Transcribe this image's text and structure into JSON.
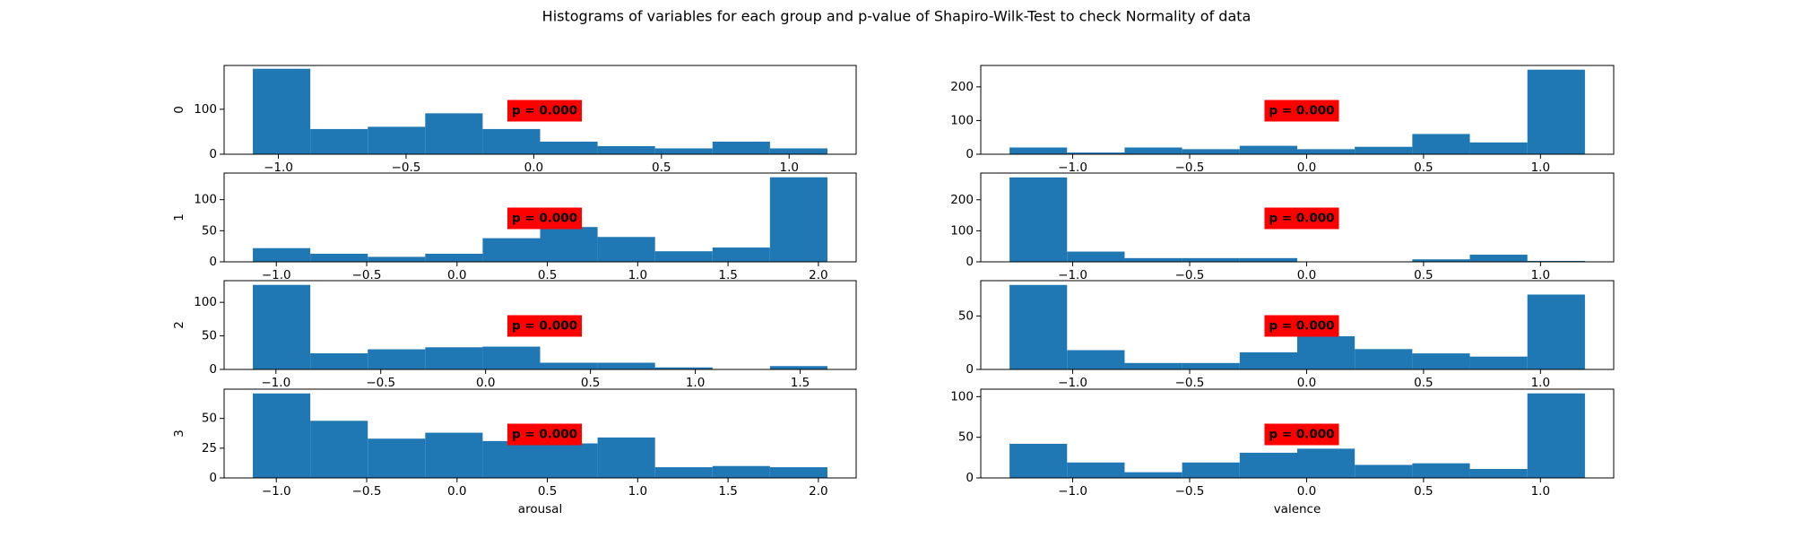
{
  "title": "Histograms of variables for each group and p-value of Shapiro-Wilk-Test to check Normality of data",
  "chart_data": [
    {
      "type": "histogram",
      "ylabel": "0",
      "annotation": "p = 0.000",
      "color": "#1f77b4",
      "bins": [
        -1.1,
        -0.875,
        -0.65,
        -0.425,
        -0.2,
        0.025,
        0.25,
        0.475,
        0.7,
        0.925,
        1.15
      ],
      "values": [
        190,
        56,
        61,
        91,
        56,
        28,
        18,
        13,
        28,
        13
      ],
      "xlim": [
        -1.2125,
        1.2625
      ],
      "ylim": [
        0,
        197.4
      ],
      "xticks": [
        {
          "value": -1.0,
          "label": "−1.0"
        },
        {
          "value": -0.5,
          "label": "−0.5"
        },
        {
          "value": 0.0,
          "label": "0.0"
        },
        {
          "value": 0.5,
          "label": "0.5"
        },
        {
          "value": 1.0,
          "label": "1.0"
        }
      ],
      "yticks": [
        0,
        100
      ]
    },
    {
      "type": "histogram",
      "annotation": "p = 0.000",
      "color": "#1f77b4",
      "bins": [
        -1.27,
        -1.024,
        -0.778,
        -0.532,
        -0.286,
        -0.04,
        0.206,
        0.452,
        0.698,
        0.944,
        1.19
      ],
      "values": [
        20,
        5,
        20,
        15,
        25,
        15,
        22,
        60,
        35,
        251
      ],
      "xlim": [
        -1.393,
        1.313
      ],
      "ylim": [
        0,
        263.5
      ],
      "xticks": [
        {
          "value": -1.0,
          "label": "−1.0"
        },
        {
          "value": -0.5,
          "label": "−0.5"
        },
        {
          "value": 0.0,
          "label": "0.0"
        },
        {
          "value": 0.5,
          "label": "0.5"
        },
        {
          "value": 1.0,
          "label": "1.0"
        }
      ],
      "yticks": [
        0,
        100,
        200
      ]
    },
    {
      "type": "histogram",
      "ylabel": "1",
      "annotation": "p = 0.000",
      "color": "#1f77b4",
      "bins": [
        -1.13,
        -0.812,
        -0.494,
        -0.176,
        0.142,
        0.46,
        0.778,
        1.096,
        1.414,
        1.732,
        2.05
      ],
      "values": [
        22,
        13,
        8,
        13,
        38,
        56,
        40,
        17,
        23,
        136
      ],
      "xlim": [
        -1.289,
        2.209
      ],
      "ylim": [
        0,
        142.8
      ],
      "xticks": [
        {
          "value": -1.0,
          "label": "−1.0"
        },
        {
          "value": -0.5,
          "label": "−0.5"
        },
        {
          "value": 0.0,
          "label": "0.0"
        },
        {
          "value": 0.5,
          "label": "0.5"
        },
        {
          "value": 1.0,
          "label": "1.0"
        },
        {
          "value": 1.5,
          "label": "1.5"
        },
        {
          "value": 2.0,
          "label": "2.0"
        }
      ],
      "yticks": [
        0,
        50,
        100
      ]
    },
    {
      "type": "histogram",
      "annotation": "p = 0.000",
      "color": "#1f77b4",
      "bins": [
        -1.27,
        -1.024,
        -0.778,
        -0.532,
        -0.286,
        -0.04,
        0.206,
        0.452,
        0.698,
        0.944,
        1.19
      ],
      "values": [
        272,
        33,
        12,
        12,
        12,
        0,
        0,
        8,
        23,
        3
      ],
      "xlim": [
        -1.393,
        1.313
      ],
      "ylim": [
        0,
        286
      ],
      "xticks": [
        {
          "value": -1.0,
          "label": "−1.0"
        },
        {
          "value": -0.5,
          "label": "−0.5"
        },
        {
          "value": 0.0,
          "label": "0.0"
        },
        {
          "value": 0.5,
          "label": "0.5"
        },
        {
          "value": 1.0,
          "label": "1.0"
        }
      ],
      "yticks": [
        0,
        100,
        200
      ]
    },
    {
      "type": "histogram",
      "ylabel": "2",
      "annotation": "p = 0.000",
      "color": "#1f77b4",
      "bins": [
        -1.11,
        -0.836,
        -0.562,
        -0.288,
        -0.014,
        0.26,
        0.534,
        0.808,
        1.082,
        1.356,
        1.63
      ],
      "values": [
        126,
        24,
        30,
        33,
        34,
        10,
        10,
        3,
        0,
        5
      ],
      "xlim": [
        -1.247,
        1.767
      ],
      "ylim": [
        0,
        132.3
      ],
      "xticks": [
        {
          "value": -1.0,
          "label": "−1.0"
        },
        {
          "value": -0.5,
          "label": "−0.5"
        },
        {
          "value": 0.0,
          "label": "0.0"
        },
        {
          "value": 0.5,
          "label": "0.5"
        },
        {
          "value": 1.0,
          "label": "1.0"
        },
        {
          "value": 1.5,
          "label": "1.5"
        }
      ],
      "yticks": [
        0,
        50,
        100
      ]
    },
    {
      "type": "histogram",
      "annotation": "p = 0.000",
      "color": "#1f77b4",
      "bins": [
        -1.27,
        -1.024,
        -0.778,
        -0.532,
        -0.286,
        -0.04,
        0.206,
        0.452,
        0.698,
        0.944,
        1.19
      ],
      "values": [
        79,
        18,
        6,
        6,
        16,
        31,
        19,
        15,
        12,
        70
      ],
      "xlim": [
        -1.393,
        1.313
      ],
      "ylim": [
        0,
        83
      ],
      "xticks": [
        {
          "value": -1.0,
          "label": "−1.0"
        },
        {
          "value": -0.5,
          "label": "−0.5"
        },
        {
          "value": 0.0,
          "label": "0.0"
        },
        {
          "value": 0.5,
          "label": "0.5"
        },
        {
          "value": 1.0,
          "label": "1.0"
        }
      ],
      "yticks": [
        0,
        50
      ]
    },
    {
      "type": "histogram",
      "ylabel": "3",
      "xlabel": "arousal",
      "annotation": "p = 0.000",
      "color": "#1f77b4",
      "bins": [
        -1.13,
        -0.812,
        -0.494,
        -0.176,
        0.142,
        0.46,
        0.778,
        1.096,
        1.414,
        1.732,
        2.05
      ],
      "values": [
        71,
        48,
        33,
        38,
        31,
        29,
        34,
        9,
        10,
        9
      ],
      "xlim": [
        -1.289,
        2.209
      ],
      "ylim": [
        0,
        74.6
      ],
      "xticks": [
        {
          "value": -1.0,
          "label": "−1.0"
        },
        {
          "value": -0.5,
          "label": "−0.5"
        },
        {
          "value": 0.0,
          "label": "0.0"
        },
        {
          "value": 0.5,
          "label": "0.5"
        },
        {
          "value": 1.0,
          "label": "1.0"
        },
        {
          "value": 1.5,
          "label": "1.5"
        },
        {
          "value": 2.0,
          "label": "2.0"
        }
      ],
      "yticks": [
        0,
        25,
        50
      ]
    },
    {
      "type": "histogram",
      "xlabel": "valence",
      "annotation": "p = 0.000",
      "color": "#1f77b4",
      "bins": [
        -1.27,
        -1.024,
        -0.778,
        -0.532,
        -0.286,
        -0.04,
        0.206,
        0.452,
        0.698,
        0.944,
        1.19
      ],
      "values": [
        42,
        19,
        7,
        19,
        31,
        36,
        16,
        18,
        11,
        104
      ],
      "xlim": [
        -1.393,
        1.313
      ],
      "ylim": [
        0,
        109.2
      ],
      "xticks": [
        {
          "value": -1.0,
          "label": "−1.0"
        },
        {
          "value": -0.5,
          "label": "−0.5"
        },
        {
          "value": 0.0,
          "label": "0.0"
        },
        {
          "value": 0.5,
          "label": "0.5"
        },
        {
          "value": 1.0,
          "label": "1.0"
        }
      ],
      "yticks": [
        0,
        50,
        100
      ]
    }
  ]
}
